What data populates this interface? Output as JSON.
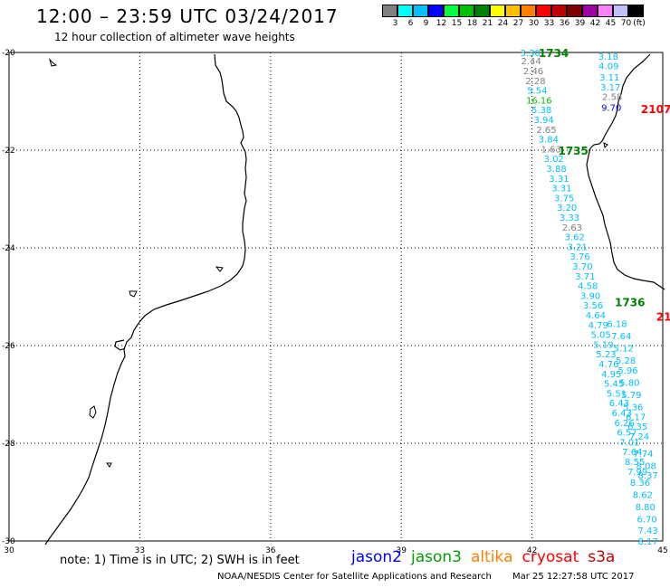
{
  "header": {
    "title": "12:00 – 23:59 UTC 03/24/2017",
    "subtitle": "12 hour collection of altimeter wave heights"
  },
  "scale": {
    "unit": "(ft)",
    "bins": [
      {
        "label": "3",
        "color": "#808080"
      },
      {
        "label": "6",
        "color": "#00ffff"
      },
      {
        "label": "9",
        "color": "#00c0ff"
      },
      {
        "label": "12",
        "color": "#0000ff"
      },
      {
        "label": "15",
        "color": "#00ff40"
      },
      {
        "label": "18",
        "color": "#00c000"
      },
      {
        "label": "21",
        "color": "#008000"
      },
      {
        "label": "24",
        "color": "#ffff00"
      },
      {
        "label": "27",
        "color": "#ffc000"
      },
      {
        "label": "30",
        "color": "#ff8000"
      },
      {
        "label": "33",
        "color": "#ff0000"
      },
      {
        "label": "36",
        "color": "#c00000"
      },
      {
        "label": "39",
        "color": "#800000"
      },
      {
        "label": "42",
        "color": "#a000a0"
      },
      {
        "label": "45",
        "color": "#ff80ff"
      },
      {
        "label": "70",
        "color": "#c0c0ff"
      },
      {
        "label": "",
        "color": "#000000"
      }
    ]
  },
  "map": {
    "lon_ticks": [
      "30",
      "33",
      "36",
      "39",
      "42",
      "45"
    ],
    "lat_ticks": [
      "-20",
      "-22",
      "-24",
      "-26",
      "-28",
      "-30"
    ]
  },
  "pass_labels": [
    {
      "text": "1734",
      "lon": 42.15,
      "lat": -20.0,
      "color": "#008000"
    },
    {
      "text": "2107",
      "lon": 44.5,
      "lat": -21.15,
      "color": "#ff0000"
    },
    {
      "text": "1735",
      "lon": 42.6,
      "lat": -22.0,
      "color": "#008000"
    },
    {
      "text": "1736",
      "lon": 43.9,
      "lat": -25.1,
      "color": "#008000"
    },
    {
      "text": "21",
      "lon": 44.85,
      "lat": -25.4,
      "color": "#ff0000"
    }
  ],
  "track1": [
    {
      "v": "3.30",
      "lon": 41.96,
      "lat": -20.0,
      "c": "#00c0ff"
    },
    {
      "v": "2.44",
      "lon": 41.98,
      "lat": -20.17,
      "c": "#808080"
    },
    {
      "v": "2.46",
      "lon": 42.03,
      "lat": -20.37,
      "c": "#808080"
    },
    {
      "v": "2.28",
      "lon": 42.08,
      "lat": -20.57,
      "c": "#808080"
    },
    {
      "v": "5.54",
      "lon": 42.12,
      "lat": -20.77,
      "c": "#00c0ff"
    },
    {
      "v": "16.16",
      "lon": 42.16,
      "lat": -20.97,
      "c": "#00c000"
    },
    {
      "v": "5.38",
      "lon": 42.22,
      "lat": -21.17,
      "c": "#00c0ff"
    },
    {
      "v": "3.94",
      "lon": 42.27,
      "lat": -21.37,
      "c": "#00c0ff"
    },
    {
      "v": "2.65",
      "lon": 42.33,
      "lat": -21.57,
      "c": "#808080"
    },
    {
      "v": "3.84",
      "lon": 42.38,
      "lat": -21.77,
      "c": "#00c0ff"
    },
    {
      "v": "1.63",
      "lon": 42.44,
      "lat": -21.97,
      "c": "#808080"
    },
    {
      "v": "3.02",
      "lon": 42.5,
      "lat": -22.17,
      "c": "#00c0ff"
    },
    {
      "v": "3.88",
      "lon": 42.56,
      "lat": -22.37,
      "c": "#00c0ff"
    },
    {
      "v": "3.31",
      "lon": 42.62,
      "lat": -22.57,
      "c": "#00c0ff"
    },
    {
      "v": "3.31",
      "lon": 42.68,
      "lat": -22.77,
      "c": "#00c0ff"
    },
    {
      "v": "3.75",
      "lon": 42.74,
      "lat": -22.97,
      "c": "#00c0ff"
    },
    {
      "v": "3.20",
      "lon": 42.8,
      "lat": -23.17,
      "c": "#00c0ff"
    },
    {
      "v": "3.33",
      "lon": 42.86,
      "lat": -23.37,
      "c": "#00c0ff"
    },
    {
      "v": "2.63",
      "lon": 42.92,
      "lat": -23.57,
      "c": "#808080"
    },
    {
      "v": "3.62",
      "lon": 42.98,
      "lat": -23.77,
      "c": "#00c0ff"
    },
    {
      "v": "3.21",
      "lon": 43.04,
      "lat": -23.97,
      "c": "#00c0ff"
    },
    {
      "v": "3.76",
      "lon": 43.1,
      "lat": -24.17,
      "c": "#00c0ff"
    },
    {
      "v": "3.70",
      "lon": 43.16,
      "lat": -24.37,
      "c": "#00c0ff"
    },
    {
      "v": "3.71",
      "lon": 43.22,
      "lat": -24.57,
      "c": "#00c0ff"
    },
    {
      "v": "4.58",
      "lon": 43.28,
      "lat": -24.77,
      "c": "#00c0ff"
    },
    {
      "v": "3.90",
      "lon": 43.34,
      "lat": -24.97,
      "c": "#00c0ff"
    },
    {
      "v": "3.56",
      "lon": 43.4,
      "lat": -25.17,
      "c": "#00c0ff"
    },
    {
      "v": "4.64",
      "lon": 43.46,
      "lat": -25.37,
      "c": "#00c0ff"
    },
    {
      "v": "4.79",
      "lon": 43.52,
      "lat": -25.57,
      "c": "#00c0ff"
    },
    {
      "v": "5.05",
      "lon": 43.58,
      "lat": -25.77,
      "c": "#00c0ff"
    },
    {
      "v": "5.19",
      "lon": 43.64,
      "lat": -25.97,
      "c": "#00c0ff"
    },
    {
      "v": "5.23",
      "lon": 43.7,
      "lat": -26.17,
      "c": "#00c0ff"
    },
    {
      "v": "4.76",
      "lon": 43.76,
      "lat": -26.37,
      "c": "#00c0ff"
    },
    {
      "v": "4.95",
      "lon": 43.82,
      "lat": -26.57,
      "c": "#00c0ff"
    },
    {
      "v": "5.45",
      "lon": 43.88,
      "lat": -26.77,
      "c": "#00c0ff"
    },
    {
      "v": "5.51",
      "lon": 43.94,
      "lat": -26.97,
      "c": "#00c0ff"
    },
    {
      "v": "6.43",
      "lon": 44.0,
      "lat": -27.17,
      "c": "#00c0ff"
    },
    {
      "v": "6.43",
      "lon": 44.06,
      "lat": -27.37,
      "c": "#00c0ff"
    },
    {
      "v": "6.26",
      "lon": 44.12,
      "lat": -27.57,
      "c": "#00c0ff"
    },
    {
      "v": "6.57",
      "lon": 44.18,
      "lat": -27.77,
      "c": "#00c0ff"
    },
    {
      "v": "7.01",
      "lon": 44.24,
      "lat": -27.97,
      "c": "#00c0ff"
    },
    {
      "v": "7.64",
      "lon": 44.3,
      "lat": -28.17,
      "c": "#00c0ff"
    },
    {
      "v": "8.55",
      "lon": 44.36,
      "lat": -28.37,
      "c": "#00c0ff"
    },
    {
      "v": "7.99",
      "lon": 44.42,
      "lat": -28.57,
      "c": "#00c0ff"
    },
    {
      "v": "8.36",
      "lon": 44.48,
      "lat": -28.8,
      "c": "#00c0ff"
    },
    {
      "v": "8.62",
      "lon": 44.54,
      "lat": -29.05,
      "c": "#00c0ff"
    },
    {
      "v": "8.80",
      "lon": 44.6,
      "lat": -29.3,
      "c": "#00c0ff"
    },
    {
      "v": "6.70",
      "lon": 44.64,
      "lat": -29.55,
      "c": "#00c0ff"
    },
    {
      "v": "7.43",
      "lon": 44.66,
      "lat": -29.78,
      "c": "#00c0ff"
    },
    {
      "v": "8.17",
      "lon": 44.66,
      "lat": -30.0,
      "c": "#00c0ff"
    }
  ],
  "track2": [
    {
      "v": "3.18",
      "lon": 43.75,
      "lat": -20.07,
      "c": "#00c0ff"
    },
    {
      "v": "4.09",
      "lon": 43.76,
      "lat": -20.27,
      "c": "#00c0ff"
    },
    {
      "v": "3.11",
      "lon": 43.78,
      "lat": -20.5,
      "c": "#00c0ff"
    },
    {
      "v": "3.17",
      "lon": 43.8,
      "lat": -20.7,
      "c": "#00c0ff"
    },
    {
      "v": "2.58",
      "lon": 43.84,
      "lat": -20.9,
      "c": "#808080"
    },
    {
      "v": "9.70",
      "lon": 43.82,
      "lat": -21.12,
      "c": "#0000ff"
    }
  ],
  "track3": [
    {
      "v": "6.18",
      "lon": 43.95,
      "lat": -25.55,
      "c": "#00c0ff"
    },
    {
      "v": "7.64",
      "lon": 44.05,
      "lat": -25.8,
      "c": "#00c0ff"
    },
    {
      "v": "5.12",
      "lon": 44.1,
      "lat": -26.05,
      "c": "#00c0ff"
    },
    {
      "v": "5.28",
      "lon": 44.15,
      "lat": -26.3,
      "c": "#00c0ff"
    },
    {
      "v": "5.96",
      "lon": 44.2,
      "lat": -26.5,
      "c": "#00c0ff"
    },
    {
      "v": "5.80",
      "lon": 44.24,
      "lat": -26.75,
      "c": "#00c0ff"
    },
    {
      "v": "5.79",
      "lon": 44.28,
      "lat": -27.0,
      "c": "#00c0ff"
    },
    {
      "v": "5.36",
      "lon": 44.32,
      "lat": -27.25,
      "c": "#00c0ff"
    },
    {
      "v": "6.17",
      "lon": 44.38,
      "lat": -27.45,
      "c": "#00c0ff"
    },
    {
      "v": "6.35",
      "lon": 44.42,
      "lat": -27.65,
      "c": "#00c0ff"
    },
    {
      "v": "7.24",
      "lon": 44.46,
      "lat": -27.85,
      "c": "#00c0ff"
    },
    {
      "v": "7.74",
      "lon": 44.55,
      "lat": -28.2,
      "c": "#00c0ff"
    },
    {
      "v": "8.08",
      "lon": 44.62,
      "lat": -28.45,
      "c": "#00c0ff"
    },
    {
      "v": "8.37",
      "lon": 44.66,
      "lat": -28.65,
      "c": "#00c0ff"
    }
  ],
  "footer": {
    "note": "note: 1) Time is in UTC; 2) SWH is in feet",
    "credit": "NOAA/NESDIS Center for Satellite Applications and Research",
    "timestamp": "Mar 25 12:27:58 UTC 2017"
  },
  "legend": [
    {
      "name": "jason2",
      "color": "#0000ff"
    },
    {
      "name": "jason3",
      "color": "#00a000"
    },
    {
      "name": "altika",
      "color": "#ff8000"
    },
    {
      "name": "cryosat",
      "color": "#ff0000"
    },
    {
      "name": "s3a",
      "color": "#c00000"
    }
  ]
}
